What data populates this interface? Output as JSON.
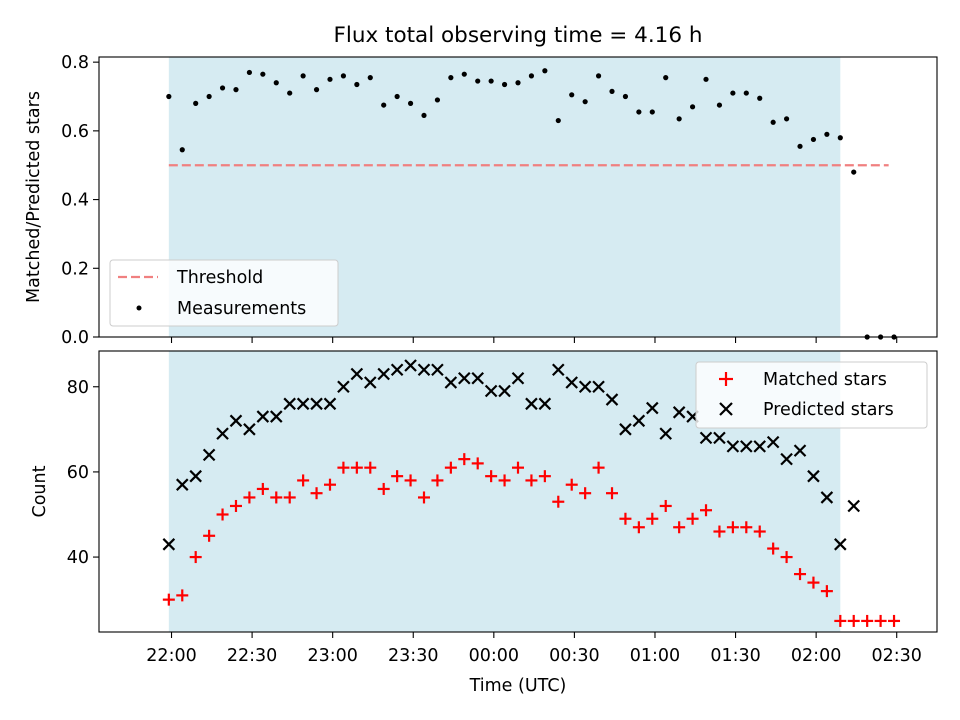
{
  "title": "Flux total observing time = 4.16 h",
  "chart_data": [
    {
      "type": "scatter",
      "ylabel": "Matched/Predicted stars",
      "ylim": [
        0,
        0.815
      ],
      "yticks": [
        0.0,
        0.2,
        0.4,
        0.6,
        0.8
      ],
      "ytick_labels": [
        "0.0",
        "0.2",
        "0.4",
        "0.6",
        "0.8"
      ],
      "observing_window_minutes": [
        -1,
        249
      ],
      "threshold": {
        "name": "Threshold",
        "value": 0.5,
        "x_range_minutes": [
          -1,
          267
        ]
      },
      "legend": {
        "placement": "lower-left",
        "entries": [
          "Threshold",
          "Measurements"
        ]
      },
      "series": [
        {
          "name": "Measurements",
          "x_minutes": [
            -1,
            4,
            9,
            14,
            19,
            24,
            29,
            34,
            39,
            44,
            49,
            54,
            59,
            64,
            69,
            74,
            79,
            84,
            89,
            94,
            99,
            104,
            109,
            114,
            119,
            124,
            129,
            134,
            139,
            144,
            149,
            154,
            159,
            164,
            169,
            174,
            179,
            184,
            189,
            194,
            199,
            204,
            209,
            214,
            219,
            224,
            229,
            234,
            239,
            244,
            249,
            254,
            259,
            264,
            269
          ],
          "y": [
            0.7,
            0.545,
            0.68,
            0.7,
            0.725,
            0.72,
            0.77,
            0.765,
            0.74,
            0.71,
            0.76,
            0.72,
            0.75,
            0.76,
            0.735,
            0.755,
            0.675,
            0.7,
            0.68,
            0.645,
            0.69,
            0.755,
            0.765,
            0.745,
            0.745,
            0.735,
            0.74,
            0.76,
            0.775,
            0.63,
            0.705,
            0.685,
            0.76,
            0.715,
            0.7,
            0.655,
            0.655,
            0.755,
            0.635,
            0.67,
            0.75,
            0.675,
            0.71,
            0.71,
            0.695,
            0.625,
            0.635,
            0.555,
            0.575,
            0.59,
            0.58,
            0.48,
            0.0,
            0.0,
            0.0
          ]
        }
      ]
    },
    {
      "type": "scatter",
      "ylabel": "Count",
      "xlabel": "Time (UTC)",
      "ylim": [
        22.4,
        88.4
      ],
      "yticks": [
        40,
        60,
        80
      ],
      "ytick_labels": [
        "40",
        "60",
        "80"
      ],
      "xticks_minutes": [
        0,
        30,
        60,
        90,
        120,
        150,
        180,
        210,
        240,
        270
      ],
      "xtick_labels": [
        "22:00",
        "22:30",
        "23:00",
        "23:30",
        "00:00",
        "00:30",
        "01:00",
        "01:30",
        "02:00",
        "02:30"
      ],
      "observing_window_minutes": [
        -1,
        249
      ],
      "legend": {
        "placement": "upper-right",
        "entries": [
          "Matched stars",
          "Predicted stars"
        ]
      },
      "series": [
        {
          "name": "Matched stars",
          "color": "#ff0000",
          "marker": "plus",
          "x_minutes": [
            -1,
            4,
            9,
            14,
            19,
            24,
            29,
            34,
            39,
            44,
            49,
            54,
            59,
            64,
            69,
            74,
            79,
            84,
            89,
            94,
            99,
            104,
            109,
            114,
            119,
            124,
            129,
            134,
            139,
            144,
            149,
            154,
            159,
            164,
            169,
            174,
            179,
            184,
            189,
            194,
            199,
            204,
            209,
            214,
            219,
            224,
            229,
            234,
            239,
            244,
            249,
            254,
            259,
            264,
            269
          ],
          "y": [
            30,
            31,
            40,
            45,
            50,
            52,
            54,
            56,
            54,
            54,
            58,
            55,
            57,
            61,
            61,
            61,
            56,
            59,
            58,
            54,
            58,
            61,
            63,
            62,
            59,
            58,
            61,
            58,
            59,
            53,
            57,
            55,
            61,
            55,
            49,
            47,
            49,
            52,
            47,
            49,
            51,
            46,
            47,
            47,
            46,
            42,
            40,
            36,
            34,
            32,
            25,
            25,
            25,
            25,
            25
          ]
        },
        {
          "name": "Predicted stars",
          "color": "#000000",
          "marker": "x",
          "x_minutes": [
            -1,
            4,
            9,
            14,
            19,
            24,
            29,
            34,
            39,
            44,
            49,
            54,
            59,
            64,
            69,
            74,
            79,
            84,
            89,
            94,
            99,
            104,
            109,
            114,
            119,
            124,
            129,
            134,
            139,
            144,
            149,
            154,
            159,
            164,
            169,
            174,
            179,
            184,
            189,
            194,
            199,
            204,
            209,
            214,
            219,
            224,
            229,
            234,
            239,
            244,
            249,
            254
          ],
          "y": [
            43,
            57,
            59,
            64,
            69,
            72,
            70,
            73,
            73,
            76,
            76,
            76,
            76,
            80,
            83,
            81,
            83,
            84,
            85,
            84,
            84,
            81,
            82,
            82,
            79,
            79,
            82,
            76,
            76,
            84,
            81,
            80,
            80,
            77,
            70,
            72,
            75,
            69,
            74,
            73,
            68,
            68,
            66,
            66,
            66,
            67,
            63,
            65,
            59,
            54,
            43,
            52
          ]
        }
      ]
    }
  ]
}
